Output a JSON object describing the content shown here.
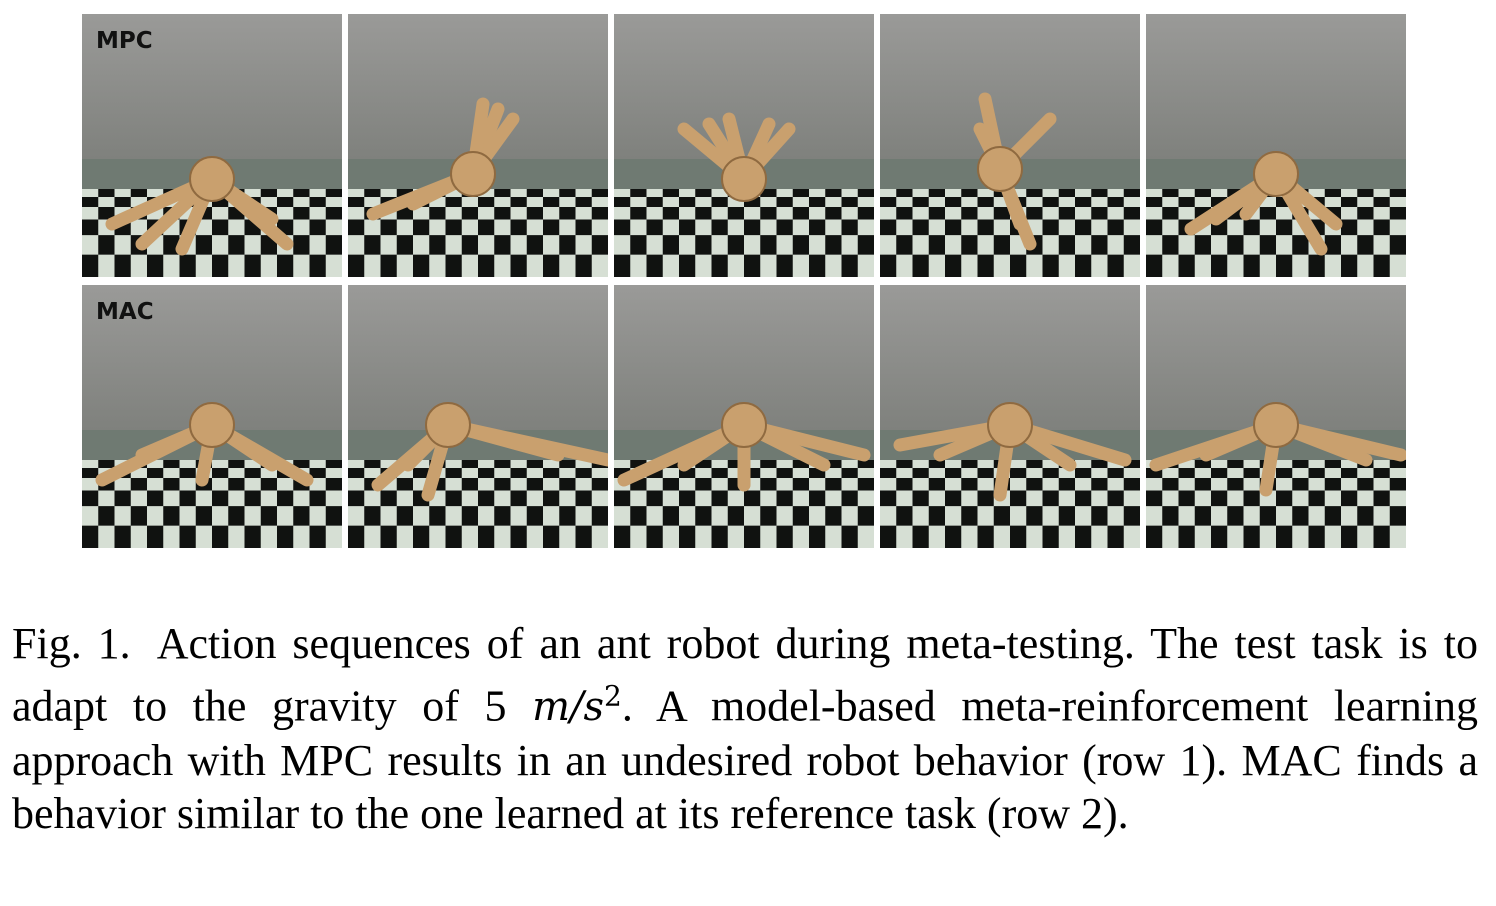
{
  "figure": {
    "rows": [
      {
        "label": "MPC",
        "frames": [
          "frame-1",
          "frame-2",
          "frame-3",
          "frame-4",
          "frame-5"
        ]
      },
      {
        "label": "MAC",
        "frames": [
          "frame-1",
          "frame-2",
          "frame-3",
          "frame-4",
          "frame-5"
        ]
      }
    ]
  },
  "caption": {
    "fig_num": "Fig. 1.",
    "text_before_math": "Action sequences of an ant robot during meta-testing. The test task is to adapt to the gravity of 5",
    "math_unit": "m/s",
    "math_exponent": "2",
    "text_after_math": ". A model-based meta-reinforcement learning approach with MPC results in an undesired robot behavior (row 1). MAC finds a behavior similar to the one learned at its reference task (row 2)."
  },
  "colors": {
    "sky_top": "#9a9a98",
    "sky_bottom": "#7e807c",
    "horizon": "#6f7a72",
    "floor_light": "#d6dfd4",
    "floor_dark": "#101210",
    "ant_body": "#c9a06e",
    "ant_shadow": "#8f6a40"
  }
}
